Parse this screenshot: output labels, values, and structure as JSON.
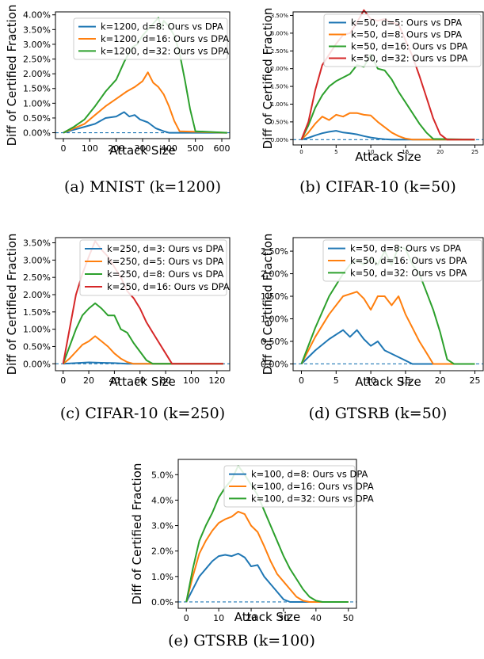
{
  "chart_data": [
    {
      "type": "line",
      "panel_title": "(a) MNIST (k=1200)",
      "xlabel": "Attack Size",
      "ylabel": "Diff of Certified Fraction",
      "xlim": [
        -30,
        630
      ],
      "ylim": [
        -0.2,
        4.1
      ],
      "xticks": [
        0,
        100,
        200,
        300,
        400,
        500,
        600
      ],
      "yticks": [
        0,
        0.5,
        1.0,
        1.5,
        2.0,
        2.5,
        3.0,
        3.5,
        4.0
      ],
      "ytick_labels": [
        "0.00%",
        "0.50%",
        "1.00%",
        "1.50%",
        "2.00%",
        "2.50%",
        "3.00%",
        "3.50%",
        "4.00%"
      ],
      "legend_position": "top-right",
      "series": [
        {
          "name": "k=1200, d=8: Ours vs DPA",
          "color": "#1f77b4",
          "x": [
            0,
            40,
            80,
            120,
            160,
            200,
            230,
            250,
            270,
            290,
            320,
            350,
            380,
            400,
            620
          ],
          "y": [
            0,
            0.1,
            0.2,
            0.3,
            0.5,
            0.55,
            0.7,
            0.55,
            0.6,
            0.45,
            0.35,
            0.15,
            0.05,
            0,
            0
          ]
        },
        {
          "name": "k=1200, d=16: Ours vs DPA",
          "color": "#ff7f0e",
          "x": [
            0,
            40,
            80,
            120,
            160,
            200,
            240,
            270,
            300,
            320,
            340,
            360,
            380,
            400,
            420,
            440,
            620
          ],
          "y": [
            0,
            0.15,
            0.3,
            0.6,
            0.9,
            1.15,
            1.4,
            1.55,
            1.75,
            2.05,
            1.7,
            1.55,
            1.3,
            0.9,
            0.4,
            0.05,
            0
          ]
        },
        {
          "name": "k=1200, d=32: Ours vs DPA",
          "color": "#2ca02c",
          "x": [
            0,
            40,
            80,
            120,
            160,
            200,
            230,
            260,
            280,
            300,
            320,
            340,
            360,
            370,
            380,
            400,
            420,
            440,
            460,
            480,
            500,
            620
          ],
          "y": [
            0,
            0.2,
            0.45,
            0.9,
            1.4,
            1.8,
            2.4,
            2.9,
            3.0,
            3.3,
            3.5,
            3.7,
            3.9,
            3.55,
            3.8,
            3.6,
            3.3,
            2.7,
            1.8,
            0.8,
            0.05,
            0
          ]
        }
      ],
      "baseline": 0
    },
    {
      "type": "line",
      "panel_title": "(b) CIFAR-10 (k=50)",
      "xlabel": "Attack Size",
      "ylabel": "Diff of Certified Fraction",
      "xlim": [
        -1.2,
        26.2
      ],
      "ylim": [
        -0.15,
        3.6
      ],
      "xticks": [
        0,
        5,
        10,
        15,
        20,
        25
      ],
      "yticks": [
        0,
        0.5,
        1.0,
        1.5,
        2.0,
        2.5,
        3.0,
        3.5
      ],
      "ytick_labels": [
        "0.00%",
        "0.50%",
        "1.00%",
        "1.50%",
        "2.00%",
        "2.50%",
        "3.00%",
        "3.50%"
      ],
      "legend_position": "top-right",
      "series": [
        {
          "name": "k=50, d=5: Ours vs DPA",
          "color": "#1f77b4",
          "x": [
            0,
            1,
            2,
            3,
            4,
            5,
            6,
            7,
            8,
            9,
            10,
            11,
            12,
            13,
            25
          ],
          "y": [
            0,
            0.05,
            0.12,
            0.18,
            0.22,
            0.25,
            0.2,
            0.18,
            0.15,
            0.1,
            0.06,
            0.03,
            0.01,
            0,
            0
          ]
        },
        {
          "name": "k=50, d=8: Ours vs DPA",
          "color": "#ff7f0e",
          "x": [
            0,
            1,
            2,
            3,
            4,
            5,
            6,
            7,
            8,
            9,
            10,
            11,
            12,
            13,
            14,
            15,
            16,
            25
          ],
          "y": [
            0,
            0.2,
            0.45,
            0.65,
            0.55,
            0.7,
            0.65,
            0.75,
            0.75,
            0.7,
            0.68,
            0.5,
            0.35,
            0.2,
            0.1,
            0.03,
            0,
            0
          ]
        },
        {
          "name": "k=50, d=16: Ours vs DPA",
          "color": "#2ca02c",
          "x": [
            0,
            1,
            2,
            3,
            4,
            5,
            6,
            7,
            8,
            9,
            10,
            11,
            12,
            13,
            14,
            15,
            16,
            17,
            18,
            19,
            25
          ],
          "y": [
            0,
            0.4,
            0.9,
            1.25,
            1.5,
            1.65,
            1.75,
            1.85,
            2.1,
            2.05,
            2.4,
            2.0,
            1.95,
            1.7,
            1.35,
            1.05,
            0.75,
            0.45,
            0.2,
            0.02,
            0
          ]
        },
        {
          "name": "k=50, d=32: Ours vs DPA",
          "color": "#d62728",
          "x": [
            0,
            1,
            2,
            3,
            4,
            5,
            6,
            7,
            8,
            9,
            10,
            11,
            12,
            13,
            14,
            15,
            16,
            17,
            18,
            19,
            20,
            21,
            25
          ],
          "y": [
            0,
            0.5,
            1.4,
            2.1,
            2.4,
            2.7,
            2.95,
            3.0,
            3.3,
            3.65,
            3.4,
            3.35,
            3.4,
            3.3,
            3.25,
            2.8,
            2.35,
            1.8,
            1.2,
            0.6,
            0.15,
            0,
            0
          ]
        }
      ],
      "baseline": 0
    },
    {
      "type": "line",
      "panel_title": "(c) CIFAR-10 (k=250)",
      "xlabel": "Attack Size",
      "ylabel": "Diff of Certified Fraction",
      "xlim": [
        -6,
        130
      ],
      "ylim": [
        -0.2,
        3.65
      ],
      "xticks": [
        0,
        20,
        40,
        60,
        80,
        100,
        120
      ],
      "yticks": [
        0,
        0.5,
        1.0,
        1.5,
        2.0,
        2.5,
        3.0,
        3.5
      ],
      "ytick_labels": [
        "0.00%",
        "0.50%",
        "1.00%",
        "1.50%",
        "2.00%",
        "2.50%",
        "3.00%",
        "3.50%"
      ],
      "legend_position": "top-right",
      "series": [
        {
          "name": "k=250, d=3: Ours vs DPA",
          "color": "#1f77b4",
          "x": [
            0,
            10,
            20,
            30,
            40,
            50,
            125
          ],
          "y": [
            0,
            0.02,
            0.04,
            0.03,
            0.02,
            0,
            0
          ]
        },
        {
          "name": "k=250, d=5: Ours vs DPA",
          "color": "#ff7f0e",
          "x": [
            0,
            5,
            10,
            15,
            20,
            25,
            30,
            35,
            40,
            45,
            50,
            55,
            125
          ],
          "y": [
            0,
            0.15,
            0.35,
            0.55,
            0.65,
            0.8,
            0.65,
            0.5,
            0.3,
            0.15,
            0.05,
            0,
            0
          ]
        },
        {
          "name": "k=250, d=8: Ours vs DPA",
          "color": "#2ca02c",
          "x": [
            0,
            5,
            10,
            15,
            20,
            25,
            30,
            35,
            40,
            45,
            50,
            55,
            60,
            65,
            70,
            125
          ],
          "y": [
            0,
            0.5,
            1.0,
            1.4,
            1.6,
            1.75,
            1.6,
            1.4,
            1.4,
            1.0,
            0.9,
            0.6,
            0.35,
            0.1,
            0,
            0
          ]
        },
        {
          "name": "k=250, d=16: Ours vs DPA",
          "color": "#d62728",
          "x": [
            0,
            5,
            10,
            15,
            20,
            25,
            30,
            35,
            40,
            45,
            50,
            55,
            60,
            65,
            70,
            75,
            80,
            85,
            125
          ],
          "y": [
            0,
            1.0,
            2.0,
            2.6,
            3.1,
            3.55,
            3.3,
            3.1,
            2.8,
            2.5,
            2.1,
            1.9,
            1.6,
            1.2,
            0.9,
            0.6,
            0.3,
            0,
            0
          ]
        }
      ],
      "baseline": 0
    },
    {
      "type": "line",
      "panel_title": "(d) GTSRB (k=50)",
      "xlabel": "Attack Size",
      "ylabel": "Diff of Certified Fraction",
      "xlim": [
        -1.2,
        26.2
      ],
      "ylim": [
        -0.15,
        2.8
      ],
      "xticks": [
        0,
        5,
        10,
        15,
        20,
        25
      ],
      "yticks": [
        0,
        0.5,
        1.0,
        1.5,
        2.0,
        2.5
      ],
      "ytick_labels": [
        "0.00%",
        "0.50%",
        "1.00%",
        "1.50%",
        "2.00%",
        "2.50%"
      ],
      "legend_position": "top-right",
      "series": [
        {
          "name": "k=50, d=8: Ours vs DPA",
          "color": "#1f77b4",
          "x": [
            0,
            2,
            4,
            6,
            7,
            8,
            9,
            10,
            11,
            12,
            14,
            16,
            25
          ],
          "y": [
            0,
            0.3,
            0.55,
            0.75,
            0.6,
            0.75,
            0.55,
            0.4,
            0.5,
            0.3,
            0.15,
            0,
            0
          ]
        },
        {
          "name": "k=50, d=16: Ours vs DPA",
          "color": "#ff7f0e",
          "x": [
            0,
            2,
            4,
            6,
            7,
            8,
            9,
            10,
            11,
            12,
            13,
            14,
            15,
            16,
            17,
            18,
            19,
            25
          ],
          "y": [
            0,
            0.6,
            1.1,
            1.5,
            1.55,
            1.6,
            1.45,
            1.2,
            1.5,
            1.5,
            1.3,
            1.5,
            1.1,
            0.8,
            0.5,
            0.25,
            0,
            0
          ]
        },
        {
          "name": "k=50, d=32: Ours vs DPA",
          "color": "#2ca02c",
          "x": [
            0,
            2,
            4,
            6,
            7,
            8,
            9,
            10,
            11,
            12,
            13,
            14,
            15,
            16,
            17,
            18,
            19,
            20,
            21,
            22,
            25
          ],
          "y": [
            0,
            0.8,
            1.5,
            2.0,
            2.2,
            2.3,
            2.2,
            2.35,
            2.2,
            2.5,
            2.2,
            2.6,
            2.55,
            2.2,
            2.0,
            1.6,
            1.2,
            0.7,
            0.1,
            0,
            0
          ]
        }
      ],
      "baseline": 0
    },
    {
      "type": "line",
      "panel_title": "(e) GTSRB (k=100)",
      "xlabel": "Attack Size",
      "ylabel": "Diff of Certified Fraction",
      "xlim": [
        -2.5,
        52.5
      ],
      "ylim": [
        -0.25,
        5.6
      ],
      "xticks": [
        0,
        10,
        20,
        30,
        40,
        50
      ],
      "yticks": [
        0,
        1.0,
        2.0,
        3.0,
        4.0,
        5.0
      ],
      "ytick_labels": [
        "0.0%",
        "1.0%",
        "2.0%",
        "3.0%",
        "4.0%",
        "5.0%"
      ],
      "legend_position": "top-right",
      "series": [
        {
          "name": "k=100, d=8: Ours vs DPA",
          "color": "#1f77b4",
          "x": [
            0,
            2,
            4,
            6,
            8,
            10,
            12,
            14,
            16,
            18,
            20,
            22,
            24,
            26,
            28,
            30,
            32,
            50
          ],
          "y": [
            0,
            0.5,
            1.0,
            1.3,
            1.6,
            1.8,
            1.85,
            1.8,
            1.9,
            1.75,
            1.4,
            1.45,
            1.0,
            0.7,
            0.4,
            0.1,
            0,
            0
          ]
        },
        {
          "name": "k=100, d=16: Ours vs DPA",
          "color": "#ff7f0e",
          "x": [
            0,
            2,
            4,
            6,
            8,
            10,
            12,
            14,
            16,
            18,
            20,
            22,
            24,
            26,
            28,
            30,
            32,
            34,
            36,
            38,
            50
          ],
          "y": [
            0,
            1.0,
            1.9,
            2.4,
            2.8,
            3.1,
            3.25,
            3.35,
            3.55,
            3.45,
            3.0,
            2.75,
            2.2,
            1.6,
            1.1,
            0.8,
            0.5,
            0.2,
            0.05,
            0,
            0
          ]
        },
        {
          "name": "k=100, d=32: Ours vs DPA",
          "color": "#2ca02c",
          "x": [
            0,
            2,
            4,
            6,
            8,
            10,
            12,
            14,
            16,
            18,
            20,
            22,
            24,
            26,
            28,
            30,
            32,
            34,
            36,
            38,
            40,
            42,
            50
          ],
          "y": [
            0,
            1.3,
            2.4,
            3.0,
            3.5,
            4.1,
            4.5,
            4.8,
            5.35,
            5.0,
            4.6,
            4.2,
            3.6,
            3.0,
            2.4,
            1.8,
            1.3,
            0.9,
            0.5,
            0.2,
            0.05,
            0,
            0
          ]
        }
      ],
      "baseline": 0
    }
  ]
}
